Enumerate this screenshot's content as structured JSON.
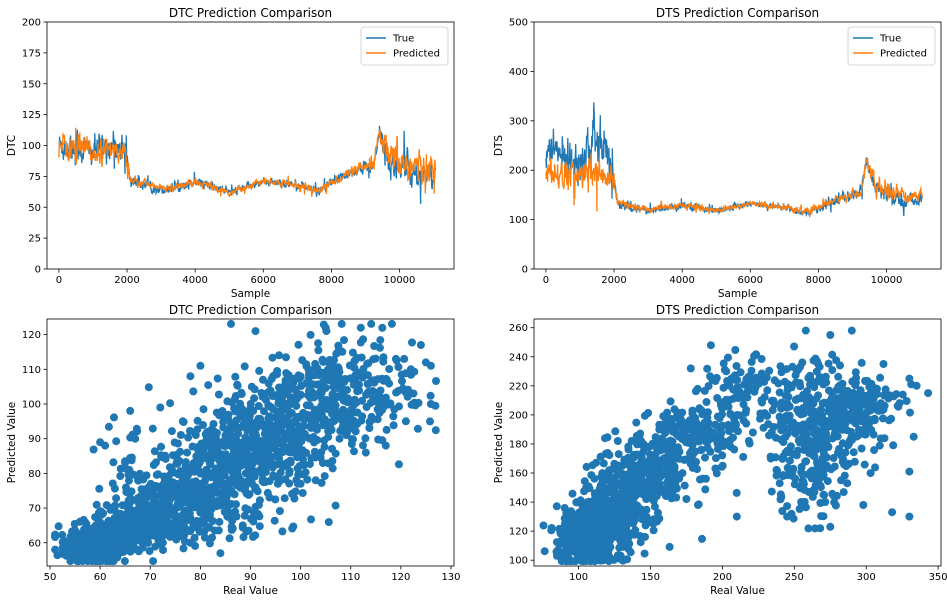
{
  "chart_data": [
    {
      "type": "line",
      "title": "DTC Prediction Comparison",
      "xlabel": "Sample",
      "ylabel": "DTC",
      "xlim": [
        -350,
        11600
      ],
      "ylim": [
        0,
        200
      ],
      "xticks": [
        0,
        2000,
        4000,
        6000,
        8000,
        10000
      ],
      "yticks": [
        0,
        25,
        50,
        75,
        100,
        125,
        150,
        175,
        200
      ],
      "legend_position": "upper right",
      "series": [
        {
          "name": "True",
          "color": "#1f77b4"
        },
        {
          "name": "Predicted",
          "color": "#ff7f0e"
        }
      ],
      "profile": [
        {
          "x": 0,
          "true": 100,
          "pred": 100,
          "true_noise": 10,
          "pred_noise": 8
        },
        {
          "x": 500,
          "true": 98,
          "pred": 97,
          "true_noise": 12,
          "pred_noise": 10
        },
        {
          "x": 1000,
          "true": 95,
          "pred": 95,
          "true_noise": 10,
          "pred_noise": 8
        },
        {
          "x": 1500,
          "true": 100,
          "pred": 96,
          "true_noise": 9,
          "pred_noise": 7
        },
        {
          "x": 1950,
          "true": 98,
          "pred": 95,
          "true_noise": 8,
          "pred_noise": 6
        },
        {
          "x": 2100,
          "true": 72,
          "pred": 73,
          "true_noise": 4,
          "pred_noise": 3
        },
        {
          "x": 3000,
          "true": 64,
          "pred": 65,
          "true_noise": 3,
          "pred_noise": 2.5
        },
        {
          "x": 4100,
          "true": 70,
          "pred": 70,
          "true_noise": 3,
          "pred_noise": 2.5
        },
        {
          "x": 5000,
          "true": 62,
          "pred": 62,
          "true_noise": 2.5,
          "pred_noise": 2
        },
        {
          "x": 6000,
          "true": 71,
          "pred": 71,
          "true_noise": 2,
          "pred_noise": 2
        },
        {
          "x": 7000,
          "true": 68,
          "pred": 68,
          "true_noise": 2.5,
          "pred_noise": 2
        },
        {
          "x": 7600,
          "true": 62,
          "pred": 63,
          "true_noise": 3,
          "pred_noise": 2.5
        },
        {
          "x": 8500,
          "true": 78,
          "pred": 78,
          "true_noise": 4,
          "pred_noise": 3
        },
        {
          "x": 9250,
          "true": 84,
          "pred": 84,
          "true_noise": 5,
          "pred_noise": 4
        },
        {
          "x": 9400,
          "true": 112,
          "pred": 110,
          "true_noise": 5,
          "pred_noise": 5
        },
        {
          "x": 9700,
          "true": 85,
          "pred": 88,
          "true_noise": 10,
          "pred_noise": 12
        },
        {
          "x": 10500,
          "true": 78,
          "pred": 82,
          "true_noise": 10,
          "pred_noise": 12
        },
        {
          "x": 11050,
          "true": 80,
          "pred": 82,
          "true_noise": 8,
          "pred_noise": 8
        }
      ],
      "n_samples": 11050
    },
    {
      "type": "line",
      "title": "DTS Prediction Comparison",
      "xlabel": "Sample",
      "ylabel": "DTS",
      "xlim": [
        -350,
        11600
      ],
      "ylim": [
        0,
        500
      ],
      "xticks": [
        0,
        2000,
        4000,
        6000,
        8000,
        10000
      ],
      "yticks": [
        0,
        100,
        200,
        300,
        400,
        500
      ],
      "legend_position": "upper right",
      "series": [
        {
          "name": "True",
          "color": "#1f77b4"
        },
        {
          "name": "Predicted",
          "color": "#ff7f0e"
        }
      ],
      "profile": [
        {
          "x": 0,
          "true": 240,
          "pred": 195,
          "true_noise": 30,
          "pred_noise": 25
        },
        {
          "x": 500,
          "true": 230,
          "pred": 190,
          "true_noise": 35,
          "pred_noise": 25
        },
        {
          "x": 1000,
          "true": 225,
          "pred": 190,
          "true_noise": 35,
          "pred_noise": 25
        },
        {
          "x": 1500,
          "true": 260,
          "pred": 195,
          "true_noise": 45,
          "pred_noise": 25
        },
        {
          "x": 1950,
          "true": 210,
          "pred": 185,
          "true_noise": 30,
          "pred_noise": 20
        },
        {
          "x": 2100,
          "true": 130,
          "pred": 135,
          "true_noise": 8,
          "pred_noise": 6
        },
        {
          "x": 3000,
          "true": 118,
          "pred": 120,
          "true_noise": 6,
          "pred_noise": 5
        },
        {
          "x": 4100,
          "true": 130,
          "pred": 130,
          "true_noise": 6,
          "pred_noise": 5
        },
        {
          "x": 5000,
          "true": 118,
          "pred": 118,
          "true_noise": 5,
          "pred_noise": 4
        },
        {
          "x": 6000,
          "true": 132,
          "pred": 132,
          "true_noise": 4,
          "pred_noise": 4
        },
        {
          "x": 7000,
          "true": 125,
          "pred": 125,
          "true_noise": 5,
          "pred_noise": 4
        },
        {
          "x": 7600,
          "true": 112,
          "pred": 115,
          "true_noise": 6,
          "pred_noise": 5
        },
        {
          "x": 8500,
          "true": 138,
          "pred": 140,
          "true_noise": 8,
          "pred_noise": 6
        },
        {
          "x": 9250,
          "true": 155,
          "pred": 155,
          "true_noise": 10,
          "pred_noise": 8
        },
        {
          "x": 9400,
          "true": 215,
          "pred": 220,
          "true_noise": 12,
          "pred_noise": 12
        },
        {
          "x": 9700,
          "true": 160,
          "pred": 165,
          "true_noise": 15,
          "pred_noise": 15
        },
        {
          "x": 10500,
          "true": 135,
          "pred": 145,
          "true_noise": 12,
          "pred_noise": 12
        },
        {
          "x": 11050,
          "true": 145,
          "pred": 155,
          "true_noise": 10,
          "pred_noise": 10
        }
      ],
      "n_samples": 11050
    },
    {
      "type": "scatter",
      "title": "DTC Prediction Comparison",
      "xlabel": "Real Value",
      "ylabel": "Predicted Value",
      "xlim": [
        49.4,
        130.6
      ],
      "ylim": [
        53.3,
        124.5
      ],
      "xticks": [
        50,
        60,
        70,
        80,
        90,
        100,
        110,
        120,
        130
      ],
      "yticks": [
        60,
        70,
        80,
        90,
        100,
        110,
        120
      ],
      "color": "#1f77b4",
      "clusters": [
        {
          "x": 58,
          "y": 59,
          "sx": 3,
          "sy": 2.5,
          "n": 260
        },
        {
          "x": 66,
          "y": 64,
          "sx": 4,
          "sy": 3,
          "n": 260
        },
        {
          "x": 74,
          "y": 70,
          "sx": 5,
          "sy": 5,
          "n": 220
        },
        {
          "x": 82,
          "y": 80,
          "sx": 6,
          "sy": 7,
          "n": 240
        },
        {
          "x": 90,
          "y": 88,
          "sx": 6,
          "sy": 8,
          "n": 240
        },
        {
          "x": 98,
          "y": 95,
          "sx": 6,
          "sy": 8,
          "n": 220
        },
        {
          "x": 106,
          "y": 103,
          "sx": 6,
          "sy": 8,
          "n": 180
        },
        {
          "x": 115,
          "y": 106,
          "sx": 5,
          "sy": 8,
          "n": 90
        },
        {
          "x": 70,
          "y": 80,
          "sx": 6,
          "sy": 9,
          "n": 60
        },
        {
          "x": 85,
          "y": 67,
          "sx": 8,
          "sy": 4,
          "n": 70
        }
      ],
      "outliers": [
        {
          "x": 53.2,
          "y": 56.5
        },
        {
          "x": 60,
          "y": 89
        },
        {
          "x": 61,
          "y": 88
        },
        {
          "x": 66,
          "y": 98
        },
        {
          "x": 67,
          "y": 90
        },
        {
          "x": 72,
          "y": 99
        },
        {
          "x": 78,
          "y": 108
        },
        {
          "x": 80,
          "y": 111
        },
        {
          "x": 91,
          "y": 121
        },
        {
          "x": 105,
          "y": 122
        },
        {
          "x": 112,
          "y": 122
        },
        {
          "x": 119,
          "y": 113
        },
        {
          "x": 122,
          "y": 110
        },
        {
          "x": 124,
          "y": 117
        },
        {
          "x": 125,
          "y": 112
        },
        {
          "x": 126,
          "y": 111
        },
        {
          "x": 126,
          "y": 100
        },
        {
          "x": 121,
          "y": 95
        },
        {
          "x": 117,
          "y": 88
        },
        {
          "x": 96,
          "y": 78
        },
        {
          "x": 100,
          "y": 77
        },
        {
          "x": 103,
          "y": 78
        },
        {
          "x": 90,
          "y": 79
        },
        {
          "x": 84,
          "y": 57
        },
        {
          "x": 78,
          "y": 60
        },
        {
          "x": 95,
          "y": 85
        },
        {
          "x": 113,
          "y": 86
        }
      ]
    },
    {
      "type": "scatter",
      "title": "DTS Prediction Comparison",
      "xlabel": "Real Value",
      "ylabel": "Predicted Value",
      "xlim": [
        69,
        352
      ],
      "ylim": [
        96,
        266
      ],
      "xticks": [
        100,
        150,
        200,
        250,
        300,
        350
      ],
      "yticks": [
        100,
        120,
        140,
        160,
        180,
        200,
        220,
        240,
        260
      ],
      "color": "#1f77b4",
      "clusters": [
        {
          "x": 105,
          "y": 115,
          "sx": 10,
          "sy": 10,
          "n": 300
        },
        {
          "x": 125,
          "y": 135,
          "sx": 12,
          "sy": 15,
          "n": 300
        },
        {
          "x": 150,
          "y": 160,
          "sx": 14,
          "sy": 15,
          "n": 220
        },
        {
          "x": 180,
          "y": 185,
          "sx": 15,
          "sy": 12,
          "n": 180
        },
        {
          "x": 215,
          "y": 215,
          "sx": 12,
          "sy": 12,
          "n": 90
        },
        {
          "x": 265,
          "y": 195,
          "sx": 18,
          "sy": 22,
          "n": 300
        },
        {
          "x": 295,
          "y": 205,
          "sx": 15,
          "sy": 12,
          "n": 140
        },
        {
          "x": 255,
          "y": 150,
          "sx": 12,
          "sy": 12,
          "n": 60
        }
      ],
      "outliers": [
        {
          "x": 85,
          "y": 103
        },
        {
          "x": 330,
          "y": 225
        },
        {
          "x": 335,
          "y": 220
        },
        {
          "x": 333,
          "y": 185
        },
        {
          "x": 330,
          "y": 130
        },
        {
          "x": 318,
          "y": 133
        },
        {
          "x": 298,
          "y": 138
        },
        {
          "x": 275,
          "y": 255
        },
        {
          "x": 290,
          "y": 258
        },
        {
          "x": 258,
          "y": 258
        },
        {
          "x": 330,
          "y": 161
        },
        {
          "x": 343,
          "y": 215
        },
        {
          "x": 312,
          "y": 235
        },
        {
          "x": 192,
          "y": 248
        },
        {
          "x": 178,
          "y": 232
        },
        {
          "x": 210,
          "y": 130
        },
        {
          "x": 183,
          "y": 138
        },
        {
          "x": 245,
          "y": 130
        },
        {
          "x": 268,
          "y": 122
        },
        {
          "x": 275,
          "y": 123
        }
      ]
    }
  ]
}
